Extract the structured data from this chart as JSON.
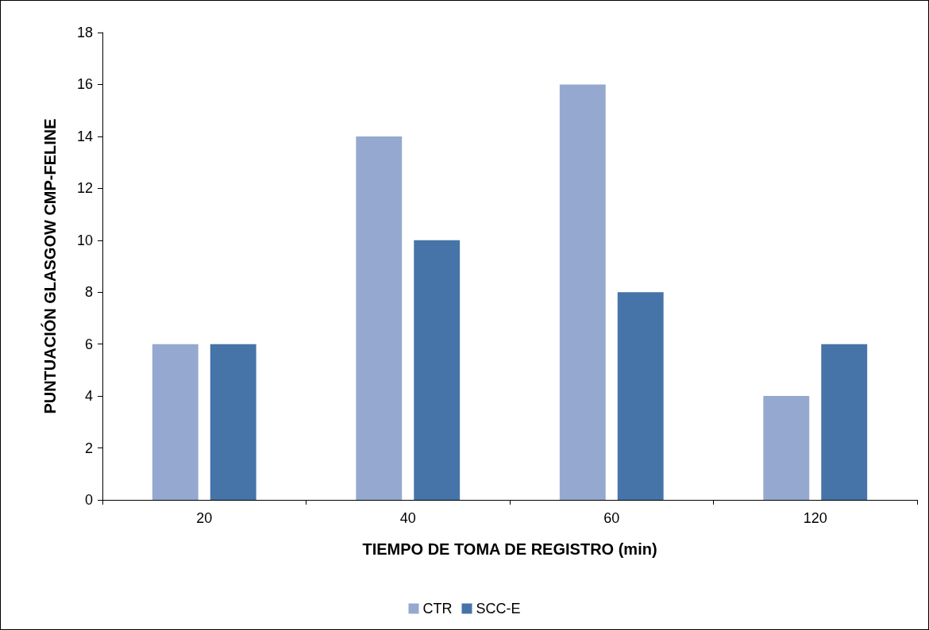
{
  "chart_data": {
    "type": "bar",
    "xlabel": "TIEMPO DE TOMA DE REGISTRO (min)",
    "ylabel": "PUNTUACIÓN GLASGOW CMP-FELINE",
    "categories": [
      "20",
      "40",
      "60",
      "120"
    ],
    "series": [
      {
        "name": "CTR",
        "color": "#95a9d0",
        "values": [
          6,
          14,
          16,
          4
        ]
      },
      {
        "name": "SCC-E",
        "color": "#4674a8",
        "values": [
          6,
          10,
          8,
          6
        ]
      }
    ],
    "ylim": [
      0,
      18
    ],
    "yticks": [
      0,
      2,
      4,
      6,
      8,
      10,
      12,
      14,
      16,
      18
    ],
    "grid": false,
    "legend": "bottom"
  }
}
